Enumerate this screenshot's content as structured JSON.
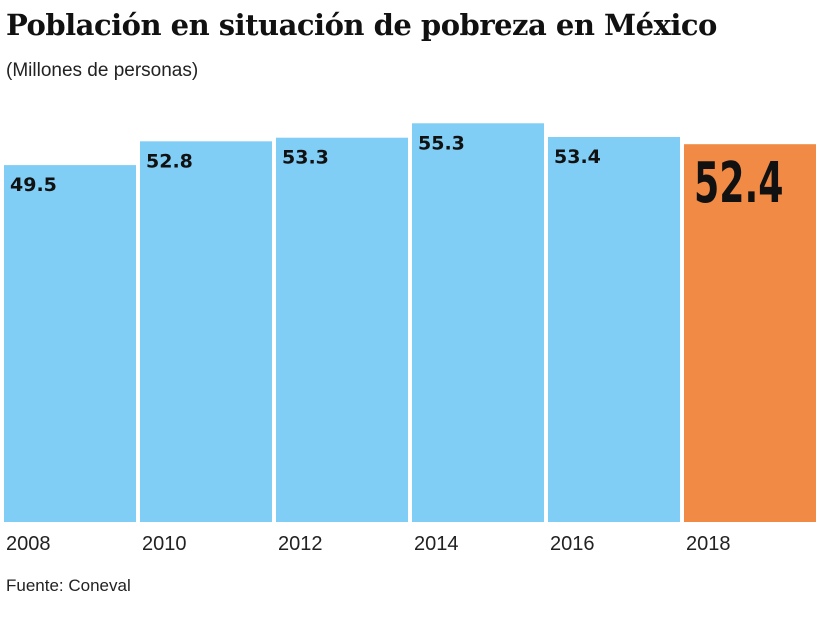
{
  "chart_data": {
    "type": "bar",
    "title": "Población en situación de pobreza en México",
    "subtitle": "(Millones de personas)",
    "categories": [
      "2008",
      "2010",
      "2012",
      "2014",
      "2016",
      "2018"
    ],
    "values": [
      49.5,
      52.8,
      53.3,
      55.3,
      53.4,
      52.4
    ],
    "value_labels": [
      "49.5",
      "52.8",
      "53.3",
      "55.3",
      "53.4",
      "52.4"
    ],
    "highlight_index": 5,
    "colors": {
      "bar": "#80CDF5",
      "highlight": "#F08A45",
      "text": "#111111"
    },
    "ylim": [
      0,
      72
    ],
    "grid": false,
    "source": "Fuente: Coneval"
  }
}
